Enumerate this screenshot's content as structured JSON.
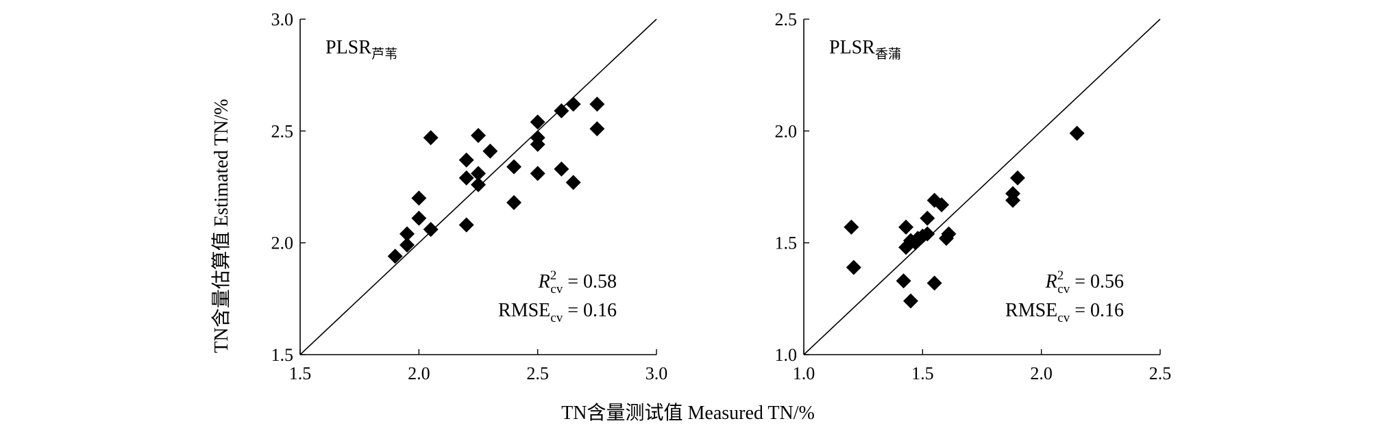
{
  "figure": {
    "shared_xlabel": "TN含量测试值 Measured TN/%",
    "shared_ylabel": "TN含量估算值 Estimated TN/%"
  },
  "chart_data": [
    {
      "type": "scatter",
      "label_main": "PLSR",
      "label_sub": "芦苇",
      "xlim": [
        1.5,
        3.0
      ],
      "ylim": [
        1.5,
        3.0
      ],
      "xticks": [
        "1.5",
        "2.0",
        "2.5",
        "3.0"
      ],
      "yticks": [
        "1.5",
        "2.0",
        "2.5",
        "3.0"
      ],
      "xticks_values": [
        1.5,
        2.0,
        2.5,
        3.0
      ],
      "yticks_values": [
        1.5,
        2.0,
        2.5,
        3.0
      ],
      "reference_line": "1:1",
      "points": [
        [
          1.9,
          1.94
        ],
        [
          1.95,
          1.99
        ],
        [
          1.95,
          2.04
        ],
        [
          2.0,
          2.11
        ],
        [
          2.0,
          2.2
        ],
        [
          2.05,
          2.06
        ],
        [
          2.05,
          2.47
        ],
        [
          2.2,
          2.08
        ],
        [
          2.2,
          2.29
        ],
        [
          2.2,
          2.37
        ],
        [
          2.25,
          2.26
        ],
        [
          2.25,
          2.31
        ],
        [
          2.25,
          2.48
        ],
        [
          2.3,
          2.41
        ],
        [
          2.4,
          2.34
        ],
        [
          2.4,
          2.18
        ],
        [
          2.5,
          2.31
        ],
        [
          2.5,
          2.44
        ],
        [
          2.5,
          2.47
        ],
        [
          2.5,
          2.54
        ],
        [
          2.6,
          2.33
        ],
        [
          2.6,
          2.59
        ],
        [
          2.65,
          2.27
        ],
        [
          2.65,
          2.62
        ],
        [
          2.75,
          2.51
        ],
        [
          2.75,
          2.62
        ]
      ],
      "stats": {
        "r2_main": "R",
        "r2_sup": "2",
        "r2_sub": "cv",
        "r2_value": " = 0.58",
        "rmse_main": "RMSE",
        "rmse_sub": "cv",
        "rmse_value": " = 0.16"
      }
    },
    {
      "type": "scatter",
      "label_main": "PLSR",
      "label_sub": "香蒲",
      "xlim": [
        1.0,
        2.5
      ],
      "ylim": [
        1.0,
        2.5
      ],
      "xticks": [
        "1.0",
        "1.5",
        "2.0",
        "2.5"
      ],
      "yticks": [
        "1.0",
        "1.5",
        "2.0",
        "2.5"
      ],
      "xticks_values": [
        1.0,
        1.5,
        2.0,
        2.5
      ],
      "yticks_values": [
        1.0,
        1.5,
        2.0,
        2.5
      ],
      "reference_line": "1:1",
      "points": [
        [
          1.2,
          1.57
        ],
        [
          1.21,
          1.39
        ],
        [
          1.42,
          1.33
        ],
        [
          1.43,
          1.48
        ],
        [
          1.43,
          1.57
        ],
        [
          1.45,
          1.24
        ],
        [
          1.45,
          1.51
        ],
        [
          1.47,
          1.5
        ],
        [
          1.48,
          1.52
        ],
        [
          1.5,
          1.53
        ],
        [
          1.52,
          1.54
        ],
        [
          1.52,
          1.61
        ],
        [
          1.55,
          1.32
        ],
        [
          1.55,
          1.69
        ],
        [
          1.58,
          1.67
        ],
        [
          1.6,
          1.52
        ],
        [
          1.61,
          1.54
        ],
        [
          1.88,
          1.69
        ],
        [
          1.88,
          1.72
        ],
        [
          1.9,
          1.79
        ],
        [
          2.15,
          1.99
        ]
      ],
      "stats": {
        "r2_main": "R",
        "r2_sup": "2",
        "r2_sub": "cv",
        "r2_value": " = 0.56",
        "rmse_main": "RMSE",
        "rmse_sub": "cv",
        "rmse_value": " = 0.16"
      }
    }
  ],
  "colors": {
    "marker": "#000000",
    "axis": "#000000",
    "background": "#ffffff"
  }
}
